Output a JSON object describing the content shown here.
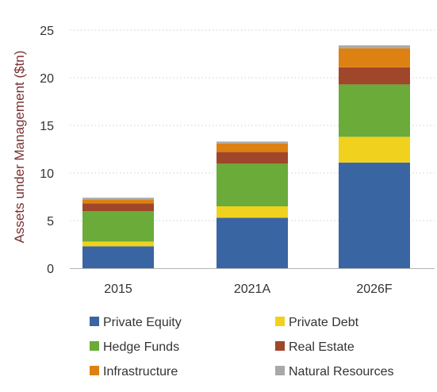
{
  "chart_data": {
    "type": "bar",
    "stacked": true,
    "title": "",
    "xlabel": "",
    "ylabel": "Assets under Management ($tn)",
    "ylim": [
      0,
      25
    ],
    "yticks": [
      0,
      5,
      10,
      15,
      20,
      25
    ],
    "grid": true,
    "legend_position": "bottom",
    "categories": [
      "2015",
      "2021A",
      "2026F"
    ],
    "series": [
      {
        "name": "Private Equity",
        "color": "#3a65a3",
        "values": [
          2.3,
          5.3,
          11.1
        ]
      },
      {
        "name": "Private Debt",
        "color": "#f0d21e",
        "values": [
          0.5,
          1.2,
          2.7
        ]
      },
      {
        "name": "Hedge Funds",
        "color": "#6aab3a",
        "values": [
          3.2,
          4.5,
          5.5
        ]
      },
      {
        "name": "Real Estate",
        "color": "#a0462a",
        "values": [
          0.8,
          1.2,
          1.8
        ]
      },
      {
        "name": "Infrastructure",
        "color": "#dd8112",
        "values": [
          0.4,
          0.9,
          2.0
        ]
      },
      {
        "name": "Natural Resources",
        "color": "#a8a8a8",
        "values": [
          0.2,
          0.2,
          0.3
        ]
      }
    ]
  }
}
